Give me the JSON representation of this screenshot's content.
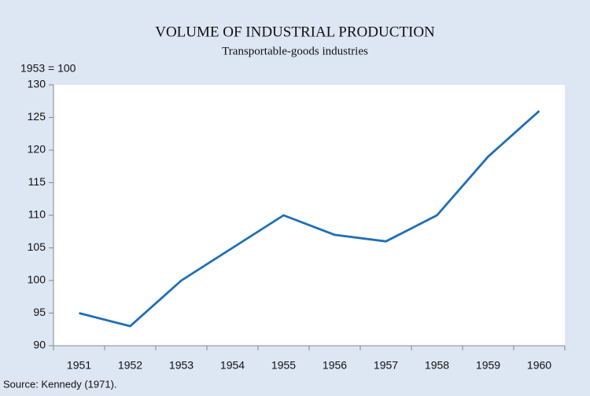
{
  "chart_data": {
    "type": "line",
    "title": "VOLUME OF INDUSTRIAL PRODUCTION",
    "subtitle": "Transportable-goods industries",
    "y_label": "1953 = 100",
    "source": "Source: Kennedy (1971).",
    "categories": [
      "1951",
      "1952",
      "1953",
      "1954",
      "1955",
      "1956",
      "1957",
      "1958",
      "1959",
      "1960"
    ],
    "values": [
      95,
      93,
      100,
      105,
      110,
      107,
      106,
      110,
      119,
      126
    ],
    "color": "#1f6fb4",
    "ylim": [
      90,
      130
    ],
    "yticks": [
      90,
      95,
      100,
      105,
      110,
      115,
      120,
      125,
      130
    ]
  }
}
